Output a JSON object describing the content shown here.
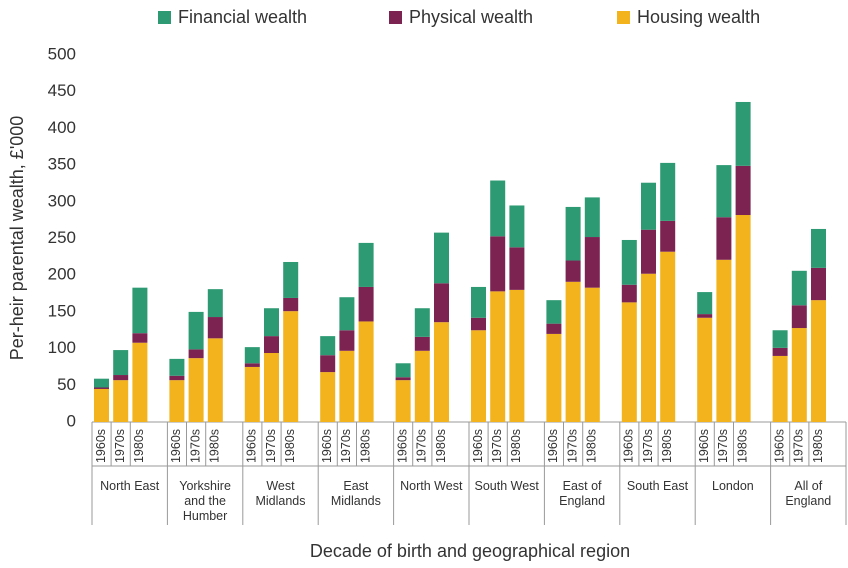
{
  "chart_data": {
    "type": "stacked-bar",
    "y_label": "Per-heir parental wealth, £'000",
    "x_label": "Decade of birth and geographical region",
    "groups": [
      "North East",
      "Yorkshire and the Humber",
      "West Midlands",
      "East Midlands",
      "North West",
      "South West",
      "East of England",
      "South East",
      "London",
      "All of England"
    ],
    "categories": [
      "1960s",
      "1970s",
      "1980s",
      "1960s",
      "1970s",
      "1980s",
      "1960s",
      "1970s",
      "1980s",
      "1960s",
      "1970s",
      "1980s",
      "1960s",
      "1970s",
      "1980s",
      "1960s",
      "1970s",
      "1980s",
      "1960s",
      "1970s",
      "1980s",
      "1960s",
      "1970s",
      "1980s",
      "1960s",
      "1970s",
      "1980s",
      "1960s",
      "1970s",
      "1980s"
    ],
    "series": [
      {
        "name": "Financial wealth",
        "color": "#2e9a73",
        "values": [
          12,
          34,
          62,
          23,
          51,
          38,
          22,
          38,
          49,
          26,
          45,
          60,
          19,
          39,
          69,
          42,
          76,
          57,
          32,
          73,
          54,
          61,
          64,
          79,
          30,
          71,
          87,
          24,
          47,
          53
        ]
      },
      {
        "name": "Physical wealth",
        "color": "#7c2352",
        "values": [
          2,
          7,
          13,
          6,
          12,
          29,
          5,
          23,
          18,
          23,
          28,
          47,
          4,
          19,
          53,
          17,
          75,
          58,
          14,
          29,
          69,
          24,
          60,
          42,
          5,
          58,
          67,
          11,
          31,
          44
        ]
      },
      {
        "name": "Housing wealth",
        "color": "#f2b31c",
        "values": [
          45,
          57,
          108,
          57,
          87,
          114,
          75,
          94,
          151,
          68,
          97,
          137,
          57,
          97,
          136,
          125,
          178,
          180,
          120,
          191,
          183,
          163,
          202,
          232,
          142,
          221,
          282,
          90,
          128,
          166
        ]
      }
    ],
    "ylim": [
      0,
      500
    ],
    "yticks": [
      0,
      50,
      100,
      150,
      200,
      250,
      300,
      350,
      400,
      450,
      500
    ],
    "grid": false
  }
}
